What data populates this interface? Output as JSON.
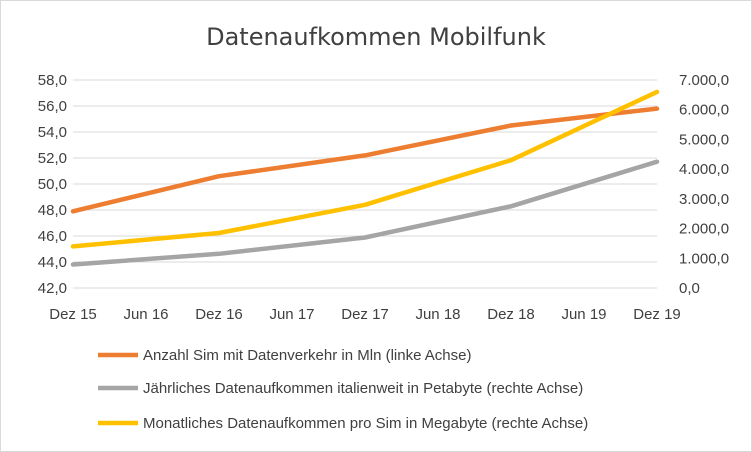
{
  "chart_data": {
    "type": "line",
    "title": "Datenaufkommen Mobilfunk",
    "x": [
      "Dez 15",
      "Jun 16",
      "Dez 16",
      "Jun 17",
      "Dez 17",
      "Jun 18",
      "Dez 18",
      "Jun 19",
      "Dez 19"
    ],
    "y_left": {
      "ticks": [
        "58,0",
        "56,0",
        "54,0",
        "52,0",
        "50,0",
        "48,0",
        "46,0",
        "44,0",
        "42,0"
      ],
      "ylim": [
        42,
        58
      ]
    },
    "y_right": {
      "ticks": [
        "7.000,0",
        "6.000,0",
        "5.000,0",
        "4.000,0",
        "3.000,0",
        "2.000,0",
        "1.000,0",
        "0,0"
      ],
      "ylim": [
        0,
        7000
      ]
    },
    "grid": true,
    "legend_position": "bottom",
    "series": [
      {
        "name": "Anzahl Sim mit Datenverkehr in Mln  (linke Achse)",
        "axis": "left",
        "color": "#ED7D31",
        "points": [
          [
            0,
            47.9
          ],
          [
            2,
            50.6
          ],
          [
            4,
            52.2
          ],
          [
            6,
            54.5
          ],
          [
            8,
            55.8
          ]
        ]
      },
      {
        "name": "Jährliches Datenaufkommen italienweit in Petabyte  (rechte Achse)",
        "axis": "right",
        "color": "#A5A5A5",
        "points": [
          [
            0,
            790
          ],
          [
            2,
            1150
          ],
          [
            4,
            1700
          ],
          [
            6,
            2750
          ],
          [
            8,
            4250
          ]
        ]
      },
      {
        "name": "Monatliches  Datenaufkommen pro Sim in Megabyte (rechte Achse)",
        "axis": "right",
        "color": "#FFC000",
        "points": [
          [
            0,
            1400
          ],
          [
            2,
            1850
          ],
          [
            4,
            2800
          ],
          [
            6,
            4300
          ],
          [
            8,
            6600
          ]
        ]
      }
    ]
  }
}
